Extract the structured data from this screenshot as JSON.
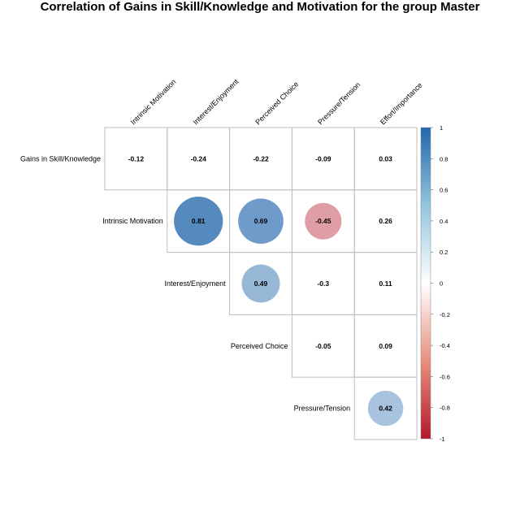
{
  "chart_data": {
    "type": "heatmap",
    "title": "Correlation of Gains in Skill/Knowledge and Motivation for the group Master",
    "columns": [
      "Intrinsic Motivation",
      "Interest/Enjoyment",
      "Perceived Choice",
      "Pressure/Tension",
      "Effort/Importance"
    ],
    "rows": [
      "Gains in Skill/Knowledge",
      "Intrinsic Motivation",
      "Interest/Enjoyment",
      "Perceived Choice",
      "Pressure/Tension"
    ],
    "cells": [
      [
        {
          "v": -0.12,
          "label": "-0.12",
          "circle": false
        },
        {
          "v": -0.24,
          "label": "-0.24",
          "circle": false
        },
        {
          "v": -0.22,
          "label": "-0.22",
          "circle": false
        },
        {
          "v": -0.09,
          "label": "-0.09",
          "circle": false
        },
        {
          "v": 0.03,
          "label": "0.03",
          "circle": false
        }
      ],
      [
        null,
        {
          "v": 0.81,
          "label": "0.81",
          "circle": true
        },
        {
          "v": 0.69,
          "label": "0.69",
          "circle": true
        },
        {
          "v": -0.45,
          "label": "-0.45",
          "circle": true
        },
        {
          "v": 0.26,
          "label": "0.26",
          "circle": false
        }
      ],
      [
        null,
        null,
        {
          "v": 0.49,
          "label": "0.49",
          "circle": true
        },
        {
          "v": -0.3,
          "label": "-0.3",
          "circle": false
        },
        {
          "v": 0.11,
          "label": "0.11",
          "circle": false
        }
      ],
      [
        null,
        null,
        null,
        {
          "v": -0.05,
          "label": "-0.05",
          "circle": false
        },
        {
          "v": 0.09,
          "label": "0.09",
          "circle": false
        }
      ],
      [
        null,
        null,
        null,
        null,
        {
          "v": 0.42,
          "label": "0.42",
          "circle": true
        }
      ]
    ],
    "colorbar": {
      "range": [
        -1,
        1
      ],
      "ticks": [
        "1",
        "0.8",
        "0.6",
        "0.4",
        "0.2",
        "0",
        "-0.2",
        "-0.4",
        "-0.6",
        "-0.8",
        "-1"
      ],
      "colors": {
        "neg": "#B2182B",
        "mid": "#FFFFFF",
        "pos": "#2166AC"
      }
    },
    "grid_color": "#BEBEBE"
  }
}
